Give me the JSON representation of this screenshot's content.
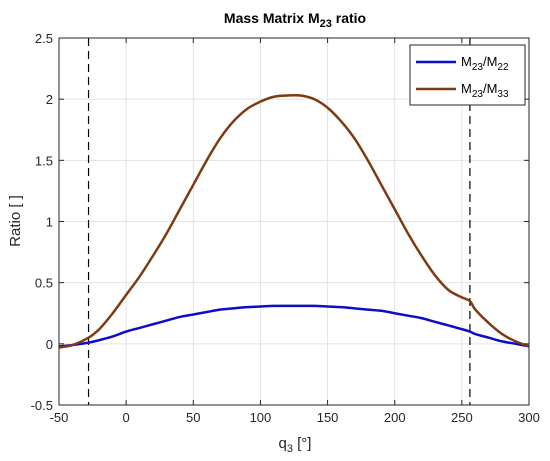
{
  "chart_data": {
    "type": "line",
    "title": {
      "base": "Mass Matrix M",
      "sub": "23",
      "suffix": " ratio"
    },
    "xlabel": {
      "base": "q",
      "sub": "3",
      "suffix": " [°]"
    },
    "ylabel": "Ratio [ ]",
    "xlim": [
      -50,
      300
    ],
    "ylim": [
      -0.5,
      2.5
    ],
    "xticks": [
      -50,
      0,
      50,
      100,
      150,
      200,
      250,
      300
    ],
    "yticks": [
      -0.5,
      0,
      0.5,
      1,
      1.5,
      2,
      2.5
    ],
    "xtick_labels": [
      "-50",
      "0",
      "50",
      "100",
      "150",
      "200",
      "250",
      "300"
    ],
    "ytick_labels": [
      "-0.5",
      "0",
      "0.5",
      "1",
      "1.5",
      "2",
      "2.5"
    ],
    "grid": true,
    "legend": "top-right",
    "vlines": [
      -28,
      256
    ],
    "series": [
      {
        "name": {
          "base": "M",
          "sub1": "23",
          "mid": "/M",
          "sub2": "22"
        },
        "color": "#0d0dc8",
        "x": [
          -50,
          -40,
          -28,
          -20,
          -10,
          0,
          10,
          20,
          30,
          40,
          50,
          60,
          70,
          80,
          90,
          100,
          110,
          120,
          130,
          140,
          150,
          160,
          170,
          180,
          190,
          200,
          210,
          220,
          230,
          240,
          250,
          256,
          260,
          270,
          280,
          290,
          300
        ],
        "y": [
          -0.02,
          -0.01,
          0.01,
          0.03,
          0.06,
          0.1,
          0.13,
          0.16,
          0.19,
          0.22,
          0.24,
          0.26,
          0.28,
          0.29,
          0.3,
          0.305,
          0.31,
          0.31,
          0.31,
          0.31,
          0.305,
          0.3,
          0.29,
          0.28,
          0.27,
          0.25,
          0.23,
          0.21,
          0.18,
          0.15,
          0.12,
          0.1,
          0.08,
          0.05,
          0.02,
          0.0,
          -0.02
        ]
      },
      {
        "name": {
          "base": "M",
          "sub1": "23",
          "mid": "/M",
          "sub2": "33"
        },
        "color": "#7f3a12",
        "x": [
          -50,
          -40,
          -28,
          -20,
          -10,
          0,
          10,
          20,
          30,
          40,
          50,
          60,
          70,
          80,
          90,
          100,
          110,
          120,
          130,
          140,
          150,
          160,
          170,
          180,
          190,
          200,
          210,
          220,
          230,
          240,
          250,
          256,
          260,
          270,
          280,
          290,
          300
        ],
        "y": [
          -0.03,
          -0.01,
          0.05,
          0.12,
          0.25,
          0.4,
          0.55,
          0.72,
          0.9,
          1.1,
          1.3,
          1.5,
          1.68,
          1.82,
          1.92,
          1.98,
          2.02,
          2.03,
          2.03,
          2.0,
          1.93,
          1.82,
          1.68,
          1.5,
          1.3,
          1.1,
          0.9,
          0.72,
          0.56,
          0.44,
          0.38,
          0.35,
          0.28,
          0.17,
          0.08,
          0.02,
          -0.02
        ]
      }
    ]
  }
}
